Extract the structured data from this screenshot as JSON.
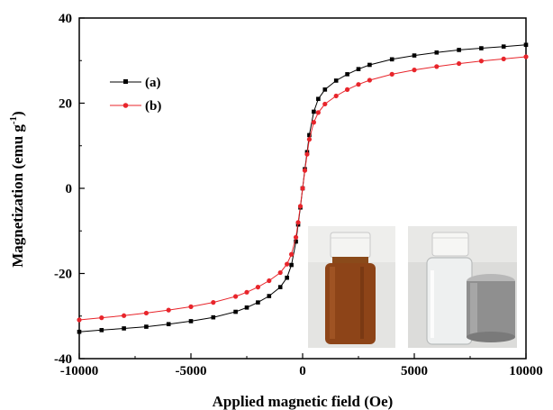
{
  "chart_data": {
    "type": "scatter",
    "xlabel": "Applied magnetic field (Oe)",
    "ylabel_main": "Magnetization (emu g",
    "ylabel_sup": "-1",
    "ylabel_close": ")",
    "xlim": [
      -10000,
      10000
    ],
    "ylim": [
      -40,
      40
    ],
    "x_ticks": [
      -10000,
      -5000,
      0,
      5000,
      10000
    ],
    "y_ticks": [
      -40,
      -20,
      0,
      20,
      40
    ],
    "x_tick_labels": [
      "-10000",
      "-5000",
      "0",
      "5000",
      "10000"
    ],
    "y_tick_labels": [
      "-40",
      "-20",
      "0",
      "20",
      "40"
    ],
    "legend_position": "upper-left",
    "series": [
      {
        "name": "(a)",
        "color": "#000000",
        "marker": "square",
        "x": [
          -10000,
          -9000,
          -8000,
          -7000,
          -6000,
          -5000,
          -4000,
          -3000,
          -2500,
          -2000,
          -1500,
          -1000,
          -700,
          -500,
          -300,
          -200,
          -100,
          0,
          100,
          200,
          300,
          500,
          700,
          1000,
          1500,
          2000,
          2500,
          3000,
          4000,
          5000,
          6000,
          7000,
          8000,
          9000,
          10000
        ],
        "y": [
          -33.7,
          -33.3,
          -32.9,
          -32.5,
          -31.9,
          -31.2,
          -30.3,
          -29.0,
          -28.0,
          -26.8,
          -25.3,
          -23.2,
          -21.0,
          -18.0,
          -12.5,
          -8.5,
          -4.5,
          0.0,
          4.5,
          8.5,
          12.5,
          18.0,
          21.0,
          23.2,
          25.3,
          26.8,
          28.0,
          29.0,
          30.3,
          31.2,
          31.9,
          32.5,
          32.9,
          33.3,
          33.7
        ]
      },
      {
        "name": "(b)",
        "color": "#e8252b",
        "marker": "circle",
        "x": [
          -10000,
          -9000,
          -8000,
          -7000,
          -6000,
          -5000,
          -4000,
          -3000,
          -2500,
          -2000,
          -1500,
          -1000,
          -700,
          -500,
          -300,
          -200,
          -100,
          0,
          100,
          200,
          300,
          500,
          700,
          1000,
          1500,
          2000,
          2500,
          3000,
          4000,
          5000,
          6000,
          7000,
          8000,
          9000,
          10000
        ],
        "y": [
          -30.9,
          -30.4,
          -29.9,
          -29.3,
          -28.6,
          -27.8,
          -26.8,
          -25.4,
          -24.4,
          -23.2,
          -21.7,
          -19.8,
          -17.8,
          -15.5,
          -11.5,
          -8.0,
          -4.2,
          0.0,
          4.2,
          8.0,
          11.5,
          15.5,
          17.8,
          19.8,
          21.7,
          23.2,
          24.4,
          25.4,
          26.8,
          27.8,
          28.6,
          29.3,
          29.9,
          30.4,
          30.9
        ]
      }
    ]
  }
}
